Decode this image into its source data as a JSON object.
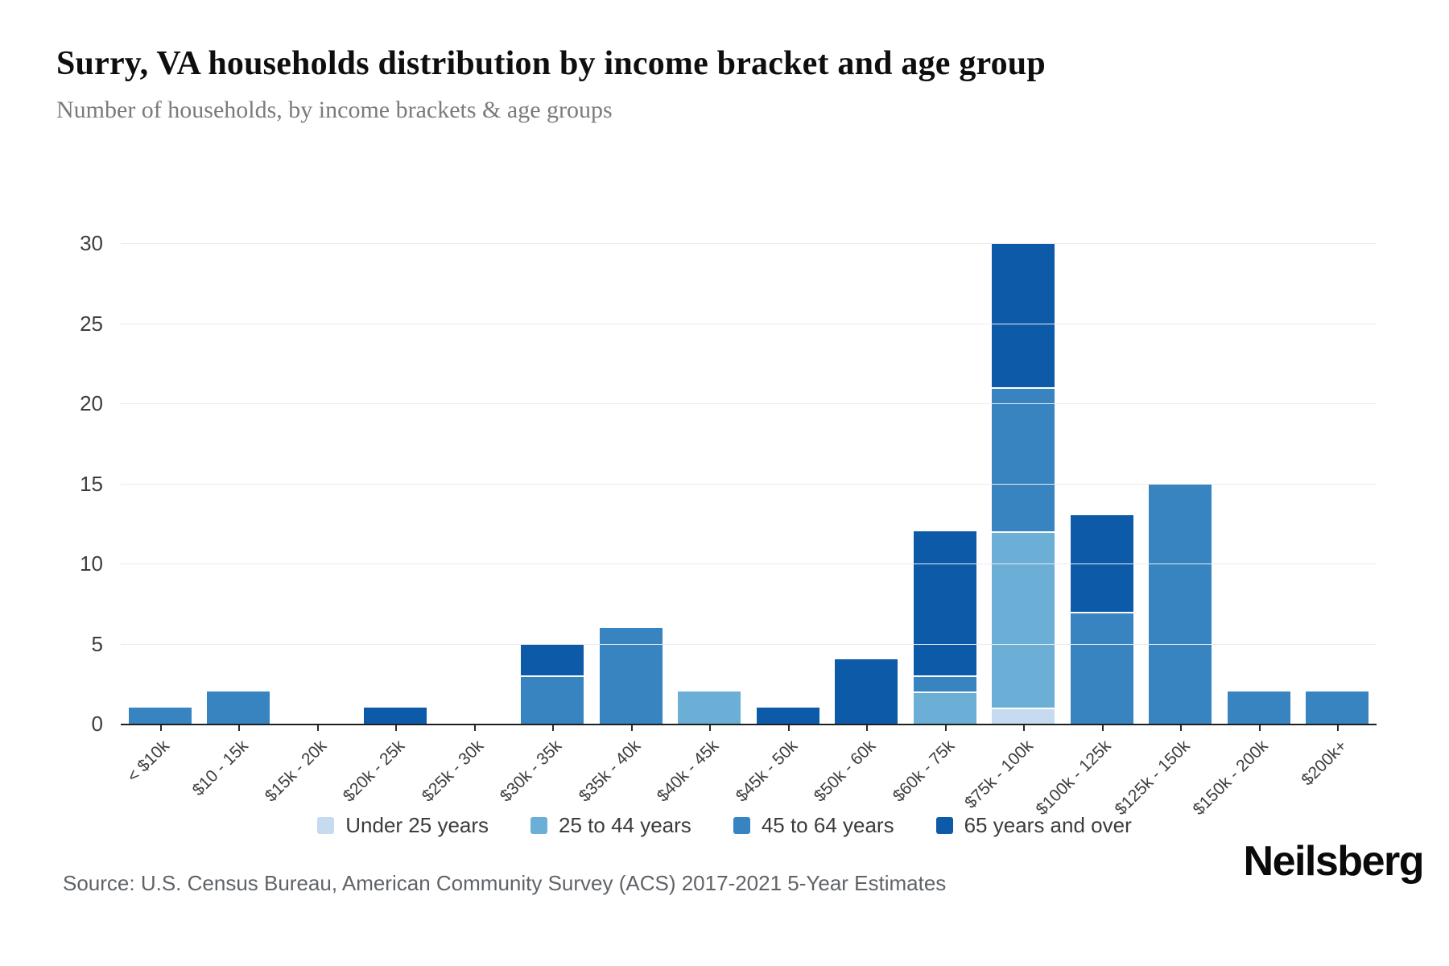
{
  "page": {
    "title": "Surry, VA households distribution by income bracket and age group",
    "subtitle": "Number of households, by income brackets & age groups",
    "source": "Source: U.S. Census Bureau, American Community Survey (ACS) 2017-2021 5-Year Estimates",
    "brand": "Neilsberg"
  },
  "chart_data": {
    "type": "bar",
    "stacked": true,
    "title": "Surry, VA households distribution by income bracket and age group",
    "xlabel": "",
    "ylabel": "Number of households",
    "ylim": [
      0,
      30
    ],
    "yticks": [
      0,
      5,
      10,
      15,
      20,
      25,
      30
    ],
    "grid": "horizontal",
    "legend_position": "bottom",
    "categories": [
      "< $10k",
      "$10 - 15k",
      "$15k - 20k",
      "$20k - 25k",
      "$25k - 30k",
      "$30k - 35k",
      "$35k - 40k",
      "$40k - 45k",
      "$45k - 50k",
      "$50k - 60k",
      "$60k - 75k",
      "$75k - 100k",
      "$100k - 125k",
      "$125k - 150k",
      "$150k - 200k",
      "$200k+"
    ],
    "series": [
      {
        "name": "Under 25 years",
        "color": "#c6dbef",
        "values": [
          0,
          0,
          0,
          0,
          0,
          0,
          0,
          0,
          0,
          0,
          0,
          1,
          0,
          0,
          0,
          0
        ]
      },
      {
        "name": "25 to 44 years",
        "color": "#6baed6",
        "values": [
          0,
          0,
          0,
          0,
          0,
          0,
          0,
          2,
          0,
          0,
          2,
          11,
          0,
          0,
          0,
          0
        ]
      },
      {
        "name": "45 to 64 years",
        "color": "#3784c0",
        "values": [
          1,
          2,
          0,
          0,
          0,
          3,
          6,
          0,
          0,
          0,
          1,
          9,
          7,
          15,
          2,
          2
        ]
      },
      {
        "name": "65 years and over",
        "color": "#0d5ba8",
        "values": [
          0,
          0,
          0,
          1,
          0,
          2,
          0,
          0,
          1,
          4,
          9,
          9,
          6,
          0,
          0,
          0
        ]
      }
    ],
    "totals": [
      1,
      2,
      0,
      1,
      0,
      5,
      6,
      2,
      1,
      4,
      12,
      30,
      13,
      15,
      2,
      2
    ]
  }
}
